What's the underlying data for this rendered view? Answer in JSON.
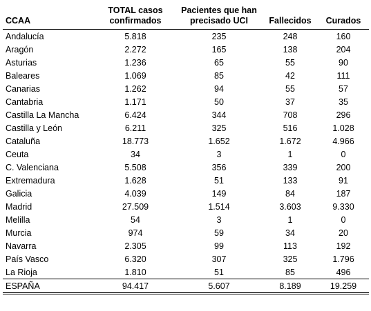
{
  "headers": [
    "CCAA",
    "TOTAL casos confirmados",
    "Pacientes que han precisado UCI",
    "Fallecidos",
    "Curados"
  ],
  "rows": [
    [
      "Andalucía",
      "5.818",
      "235",
      "248",
      "160"
    ],
    [
      "Aragón",
      "2.272",
      "165",
      "138",
      "204"
    ],
    [
      "Asturias",
      "1.236",
      "65",
      "55",
      "90"
    ],
    [
      "Baleares",
      "1.069",
      "85",
      "42",
      "111"
    ],
    [
      "Canarias",
      "1.262",
      "94",
      "55",
      "57"
    ],
    [
      "Cantabria",
      "1.171",
      "50",
      "37",
      "35"
    ],
    [
      "Castilla La Mancha",
      "6.424",
      "344",
      "708",
      "296"
    ],
    [
      "Castilla y León",
      "6.211",
      "325",
      "516",
      "1.028"
    ],
    [
      "Cataluña",
      "18.773",
      "1.652",
      "1.672",
      "4.966"
    ],
    [
      "Ceuta",
      "34",
      "3",
      "1",
      "0"
    ],
    [
      "C. Valenciana",
      "5.508",
      "356",
      "339",
      "200"
    ],
    [
      "Extremadura",
      "1.628",
      "51",
      "133",
      "91"
    ],
    [
      "Galicia",
      "4.039",
      "149",
      "84",
      "187"
    ],
    [
      "Madrid",
      "27.509",
      "1.514",
      "3.603",
      "9.330"
    ],
    [
      "Melilla",
      "54",
      "3",
      "1",
      "0"
    ],
    [
      "Murcia",
      "974",
      "59",
      "34",
      "20"
    ],
    [
      "Navarra",
      "2.305",
      "99",
      "113",
      "192"
    ],
    [
      "País Vasco",
      "6.320",
      "307",
      "325",
      "1.796"
    ],
    [
      "La Rioja",
      "1.810",
      "51",
      "85",
      "496"
    ]
  ],
  "total": [
    "ESPAÑA",
    "94.417",
    "5.607",
    "8.189",
    "19.259"
  ]
}
